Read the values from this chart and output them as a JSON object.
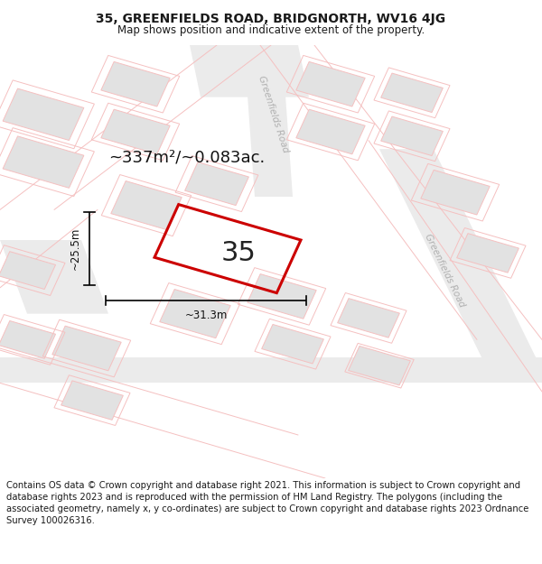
{
  "title": "35, GREENFIELDS ROAD, BRIDGNORTH, WV16 4JG",
  "subtitle": "Map shows position and indicative extent of the property.",
  "footer": "Contains OS data © Crown copyright and database right 2021. This information is subject to Crown copyright and database rights 2023 and is reproduced with the permission of HM Land Registry. The polygons (including the associated geometry, namely x, y co-ordinates) are subject to Crown copyright and database rights 2023 Ordnance Survey 100026316.",
  "map_bg": "#f7f7f7",
  "road_fill": "#ebebeb",
  "road_stroke": "#f5c0c0",
  "block_fill": "#e2e2e2",
  "block_stroke": "#f5c0c0",
  "highlight_stroke": "#cc0000",
  "area_text": "~337m²/~0.083ac.",
  "number_text": "35",
  "dim_width": "~31.3m",
  "dim_height": "~25.5m",
  "road_label_top": "Greenfields Road",
  "road_label_right": "Greenfields Road",
  "title_fontsize": 10,
  "subtitle_fontsize": 8.5,
  "footer_fontsize": 7.2,
  "area_fontsize": 13,
  "number_fontsize": 22,
  "dim_fontsize": 8.5
}
